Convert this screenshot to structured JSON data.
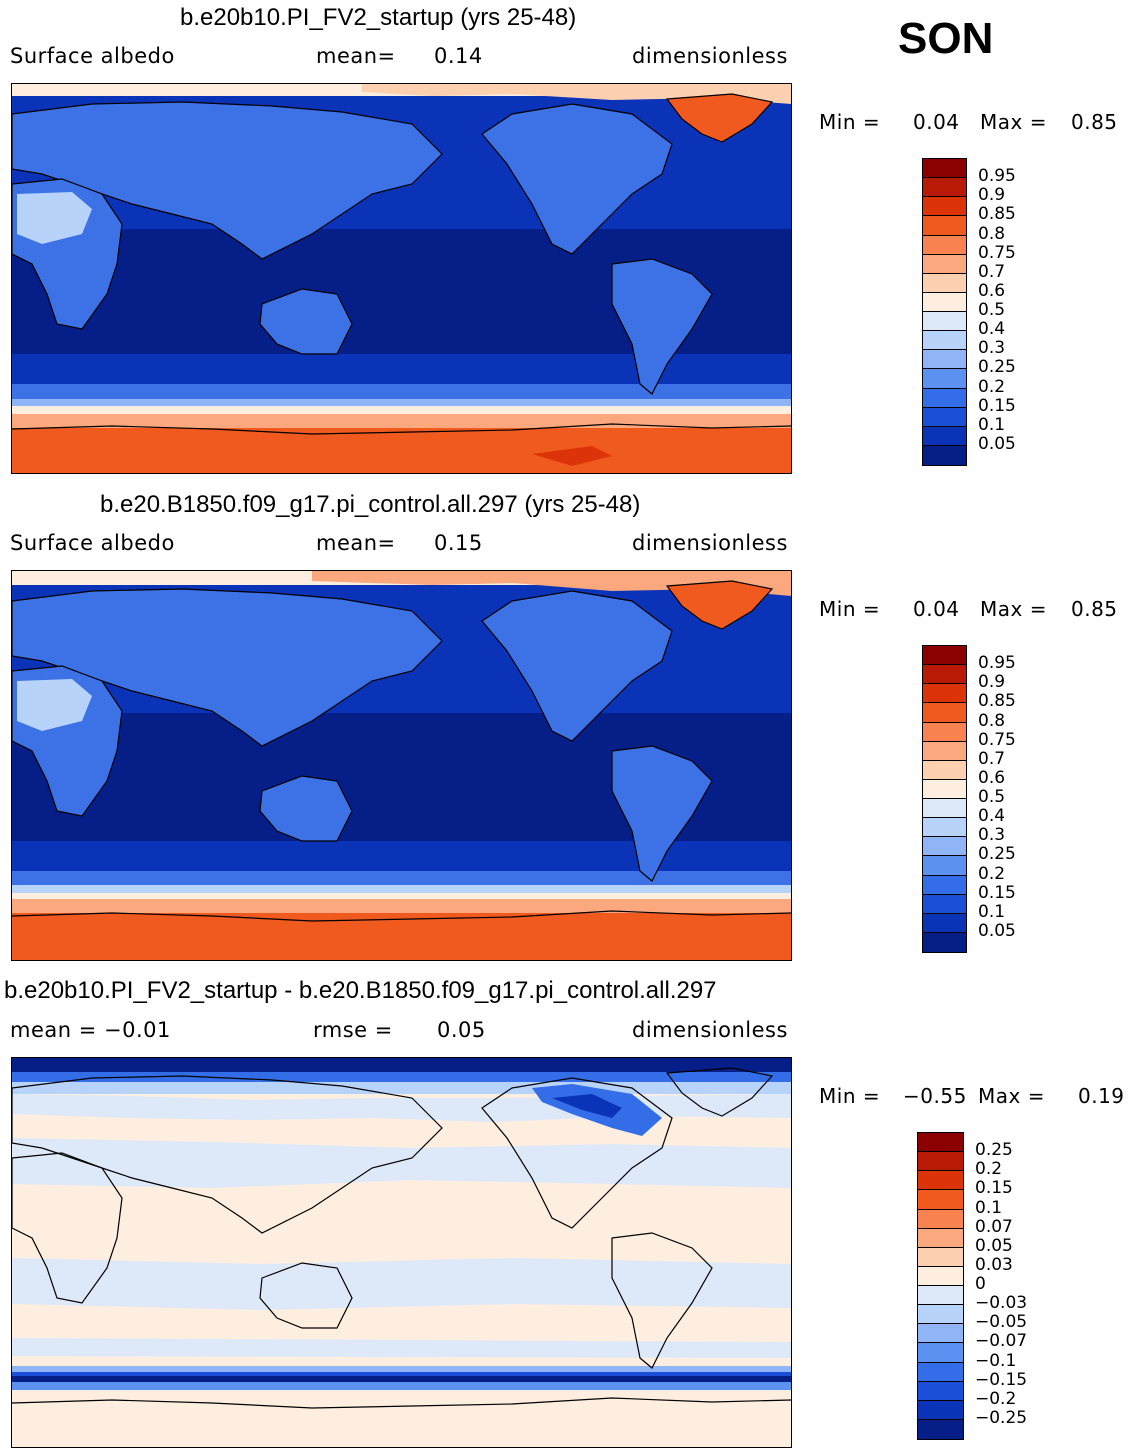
{
  "season": "SON",
  "panels": [
    {
      "title": "b.e20b10.PI_FV2_startup (yrs 25-48)",
      "left": "Surface albedo",
      "mid_label": "mean=",
      "mid_value": "0.14",
      "units": "dimensionless",
      "min_label": "Min =",
      "min_value": "0.04",
      "max_label": "Max =",
      "max_value": "0.85"
    },
    {
      "title": "b.e20.B1850.f09_g17.pi_control.all.297 (yrs 25-48)",
      "left": "Surface albedo",
      "mid_label": "mean=",
      "mid_value": "0.15",
      "units": "dimensionless",
      "min_label": "Min =",
      "min_value": "0.04",
      "max_label": "Max =",
      "max_value": "0.85"
    },
    {
      "title": "b.e20b10.PI_FV2_startup - b.e20.B1850.f09_g17.pi_control.all.297",
      "left": "mean =  −0.01",
      "mid_label": "rmse =",
      "mid_value": "0.05",
      "units": "dimensionless",
      "min_label": "Min =",
      "min_value": "−0.55",
      "max_label": "Max =",
      "max_value": "0.19"
    }
  ],
  "colorbar_abs": {
    "labels": [
      "0.95",
      "0.9",
      "0.85",
      "0.8",
      "0.75",
      "0.7",
      "0.6",
      "0.5",
      "0.4",
      "0.3",
      "0.25",
      "0.2",
      "0.15",
      "0.1",
      "0.05"
    ],
    "colors": [
      "#8b0000",
      "#b81a05",
      "#dc3408",
      "#f05a1e",
      "#f98350",
      "#fca87e",
      "#fdd0b0",
      "#fdeee0",
      "#dde9f8",
      "#b8d3fa",
      "#8fb5f6",
      "#5c91f2",
      "#336ee8",
      "#1b4fd8",
      "#0b33b8",
      "#061f88"
    ]
  },
  "colorbar_diff": {
    "labels": [
      "0.25",
      "0.2",
      "0.15",
      "0.1",
      "0.07",
      "0.05",
      "0.03",
      "0",
      "−0.03",
      "−0.05",
      "−0.07",
      "−0.1",
      "−0.15",
      "−0.2",
      "−0.25"
    ],
    "colors": [
      "#8b0000",
      "#b81a05",
      "#dc3408",
      "#f05a1e",
      "#f98350",
      "#fca87e",
      "#fdd0b0",
      "#fdeee0",
      "#dde9f8",
      "#b8d3fa",
      "#8fb5f6",
      "#5c91f2",
      "#336ee8",
      "#1b4fd8",
      "#0b33b8",
      "#061f88"
    ]
  },
  "colors": {
    "ocean_low": "#061f88",
    "ocean_mid": "#0b33b8",
    "land": "#3d72e6",
    "desert": "#b8d3fa",
    "ice": "#f05a1e",
    "ice_edge": "#fca87e",
    "diff_pos": "#fdeee0",
    "diff_neg": "#dde9f8"
  }
}
